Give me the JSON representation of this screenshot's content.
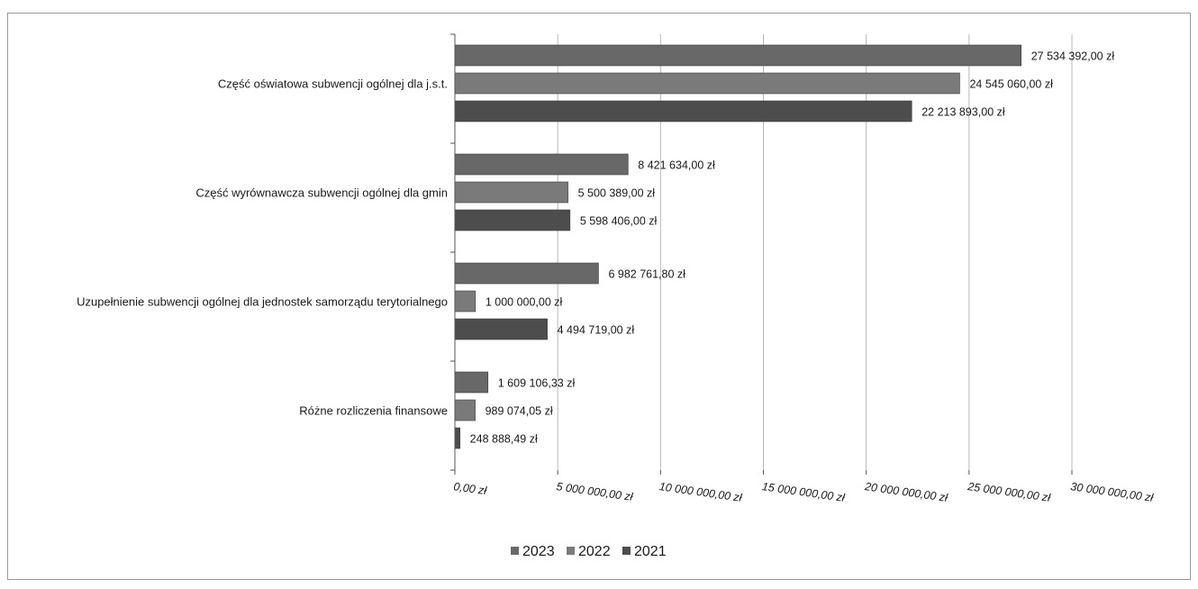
{
  "chart_data": {
    "type": "bar",
    "orientation": "horizontal",
    "title": "",
    "xlabel": "",
    "ylabel": "",
    "xlim": [
      0,
      30000000
    ],
    "grid": true,
    "legend_position": "bottom",
    "categories": [
      "Część oświatowa subwencji ogólnej dla j.s.t.",
      "Część wyrównawcza subwencji ogólnej dla gmin",
      "Uzupełnienie subwencji ogólnej dla jednostek samorządu terytorialnego",
      "Różne rozliczenia finansowe"
    ],
    "ticks": [
      {
        "value": 0,
        "label": "0,00 zł"
      },
      {
        "value": 5000000,
        "label": "5 000 000,00 zł"
      },
      {
        "value": 10000000,
        "label": "10 000 000,00 zł"
      },
      {
        "value": 15000000,
        "label": "15 000 000,00 zł"
      },
      {
        "value": 20000000,
        "label": "20 000 000,00 zł"
      },
      {
        "value": 25000000,
        "label": "25 000 000,00 zł"
      },
      {
        "value": 30000000,
        "label": "30 000 000,00 zł"
      }
    ],
    "series": [
      {
        "name": "2023",
        "color": "#686868",
        "values": [
          27534392.0,
          8421634.0,
          6982761.8,
          1609106.33
        ],
        "labels": [
          "27 534 392,00 zł",
          "8 421 634,00 zł",
          "6 982 761,80 zł",
          "1 609 106,33 zł"
        ]
      },
      {
        "name": "2022",
        "color": "#7a7a7a",
        "values": [
          24545060.0,
          5500389.0,
          1000000.0,
          989074.05
        ],
        "labels": [
          "24 545 060,00 zł",
          "5 500 389,00 zł",
          "1 000 000,00 zł",
          "989 074,05 zł"
        ]
      },
      {
        "name": "2021",
        "color": "#4d4d4d",
        "values": [
          22213893.0,
          5598406.0,
          4494719.0,
          248888.49
        ],
        "labels": [
          "22 213 893,00 zł",
          "5 598 406,00 zł",
          "4 494 719,00 zł",
          "248 888,49 zł"
        ]
      }
    ]
  }
}
